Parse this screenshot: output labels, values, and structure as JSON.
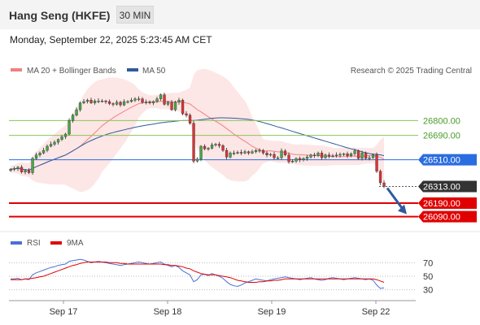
{
  "header": {
    "title": "Hang Seng (HKFE)",
    "timeframe": "30 MIN"
  },
  "datetime": "Monday, September 22, 2025 5:23:45 AM CET",
  "legend": {
    "ma20": "MA 20 + Bollinger Bands",
    "ma50": "MA 50",
    "credit": "Research © 2025 Trading Central"
  },
  "rsi_legend": {
    "rsi": "RSI",
    "ma": "9MA"
  },
  "colors": {
    "ma20": "#f08080",
    "ma50": "#2f5a9a",
    "up": "#4a4",
    "down": "#d33",
    "resistance": "#8dc55a",
    "pivot": "#2a6de0",
    "support": "#e00000",
    "current": "#333333"
  },
  "chart_data": {
    "type": "candlestick",
    "x_labels": [
      "Sep 17",
      "Sep 18",
      "Sep 19",
      "Sep 22"
    ],
    "y_range": [
      25980,
      27150
    ],
    "price_levels": [
      {
        "label": "26800.00",
        "value": 26800,
        "kind": "resistance"
      },
      {
        "label": "26690.00",
        "value": 26690,
        "kind": "resistance"
      },
      {
        "label": "26510.00",
        "value": 26510,
        "kind": "pivot"
      },
      {
        "label": "26313.00",
        "value": 26313,
        "kind": "current"
      },
      {
        "label": "26190.00",
        "value": 26190,
        "kind": "support"
      },
      {
        "label": "26090.00",
        "value": 26090,
        "kind": "support"
      }
    ],
    "close": [
      26440,
      26445,
      26455,
      26420,
      26430,
      26415,
      26520,
      26545,
      26560,
      26580,
      26610,
      26625,
      26640,
      26660,
      26680,
      26700,
      26800,
      26840,
      26880,
      26930,
      26940,
      26950,
      26930,
      26945,
      26945,
      26945,
      26940,
      26925,
      26920,
      26935,
      26915,
      26940,
      26940,
      26950,
      26960,
      26960,
      26935,
      26935,
      26930,
      26940,
      26960,
      26990,
      26920,
      26935,
      26880,
      26935,
      26950,
      26850,
      26840,
      26780,
      26500,
      26515,
      26610,
      26590,
      26595,
      26620,
      26625,
      26615,
      26580,
      26530,
      26560,
      26560,
      26565,
      26560,
      26570,
      26560,
      26570,
      26580,
      26580,
      26560,
      26545,
      26550,
      26525,
      26525,
      26575,
      26545,
      26495,
      26500,
      26520,
      26510,
      26520,
      26530,
      26545,
      26540,
      26560,
      26525,
      26545,
      26535,
      26540,
      26545,
      26550,
      26555,
      26540,
      26555,
      26575,
      26520,
      26560,
      26520,
      26525,
      26545,
      26425,
      26340,
      26313
    ],
    "rsi": {
      "levels": [
        70,
        50,
        30
      ],
      "rsi": [
        46,
        46,
        47,
        45,
        46,
        45,
        52,
        55,
        57,
        59,
        61,
        63,
        64,
        66,
        67,
        68,
        72,
        73,
        74,
        75,
        74,
        72,
        70,
        71,
        72,
        71,
        70,
        69,
        68,
        67,
        66,
        67,
        68,
        69,
        70,
        71,
        70,
        69,
        68,
        69,
        70,
        71,
        68,
        66,
        64,
        66,
        63,
        58,
        55,
        52,
        42,
        45,
        52,
        53,
        51,
        54,
        52,
        50,
        47,
        42,
        38,
        36,
        35,
        37,
        40,
        42,
        44,
        46,
        45,
        44,
        43,
        45,
        46,
        47,
        48,
        49,
        48,
        47,
        46,
        45,
        46,
        47,
        48,
        46,
        45,
        44,
        45,
        47,
        48,
        47,
        46,
        45,
        46,
        47,
        48,
        47,
        46,
        45,
        46,
        44,
        37,
        32,
        33
      ],
      "ma9": [
        45,
        45,
        45,
        45,
        46,
        46,
        47,
        48,
        49,
        50,
        52,
        54,
        56,
        58,
        60,
        62,
        64,
        66,
        67,
        69,
        70,
        71,
        71,
        71,
        71,
        71,
        71,
        70,
        70,
        70,
        69,
        69,
        68,
        68,
        68,
        68,
        68,
        68,
        68,
        68,
        68,
        68,
        67,
        67,
        66,
        66,
        65,
        64,
        62,
        61,
        58,
        56,
        54,
        53,
        52,
        52,
        52,
        51,
        50,
        49,
        48,
        46,
        44,
        43,
        42,
        41,
        41,
        41,
        42,
        42,
        43,
        43,
        44,
        44,
        45,
        46,
        46,
        46,
        46,
        46,
        46,
        46,
        46,
        46,
        46,
        46,
        46,
        46,
        46,
        46,
        46,
        46,
        46,
        46,
        46,
        46,
        46,
        46,
        46,
        46,
        45,
        43,
        41
      ]
    }
  }
}
